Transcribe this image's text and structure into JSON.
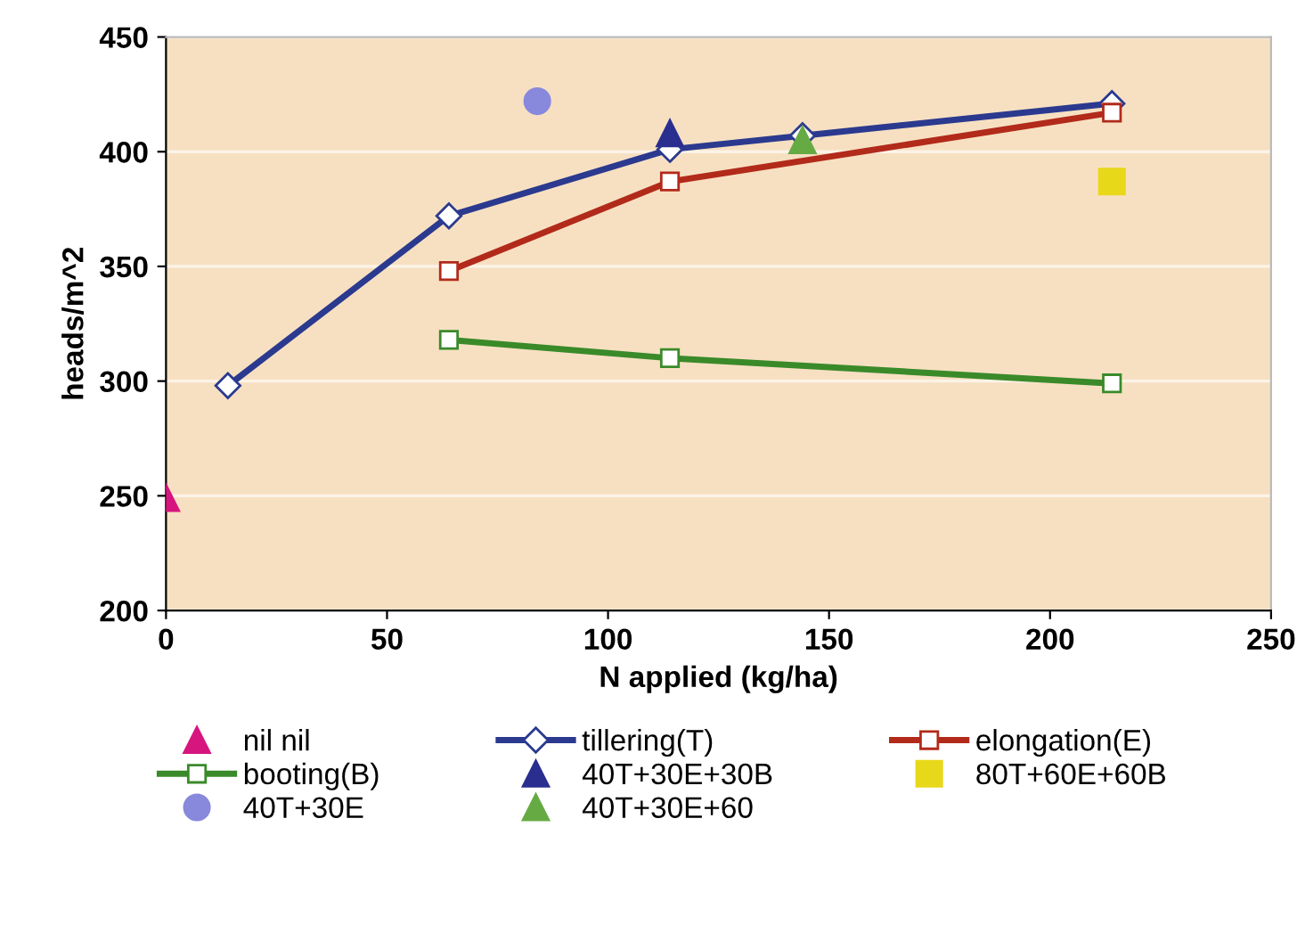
{
  "chart_data": {
    "type": "line",
    "xlabel": "N applied (kg/ha)",
    "ylabel": "heads/m^2",
    "xlim": [
      0,
      250
    ],
    "xticks": [
      0,
      50,
      100,
      150,
      200,
      250
    ],
    "ylim": [
      200,
      450
    ],
    "yticks": [
      200,
      250,
      300,
      350,
      400,
      450
    ],
    "grid": "y",
    "legend": "bottom",
    "series": [
      {
        "name": "nil nil",
        "type": "scatter",
        "marker": "triangle",
        "color": "#d6157e",
        "x": [
          0
        ],
        "values": [
          249
        ]
      },
      {
        "name": "tillering(T)",
        "marker": "diamond",
        "color": "#2b3a8f",
        "x": [
          14,
          64,
          114,
          144,
          214
        ],
        "values": [
          298,
          372,
          401,
          407,
          421
        ]
      },
      {
        "name": "elongation(E)",
        "marker": "square",
        "color": "#b22a1a",
        "x": [
          64,
          114,
          214
        ],
        "values": [
          348,
          387,
          417
        ]
      },
      {
        "name": "booting(B)",
        "marker": "square",
        "color": "#3a8a2a",
        "x": [
          64,
          114,
          214
        ],
        "values": [
          318,
          310,
          299
        ]
      },
      {
        "name": "40T+30E+30B",
        "type": "scatter",
        "marker": "triangle",
        "color": "#2a2e8f",
        "x": [
          114
        ],
        "values": [
          408
        ]
      },
      {
        "name": "80T+60E+60B",
        "type": "scatter",
        "marker": "square",
        "color": "#e8d81a",
        "x": [
          214
        ],
        "values": [
          387
        ]
      },
      {
        "name": "40T+30E",
        "type": "scatter",
        "marker": "circle",
        "color": "#8888dd",
        "x": [
          84
        ],
        "values": [
          422
        ]
      },
      {
        "name": "40T+30E+60",
        "type": "scatter",
        "marker": "triangle",
        "color": "#66aa44",
        "x": [
          144
        ],
        "values": [
          405
        ]
      }
    ]
  }
}
